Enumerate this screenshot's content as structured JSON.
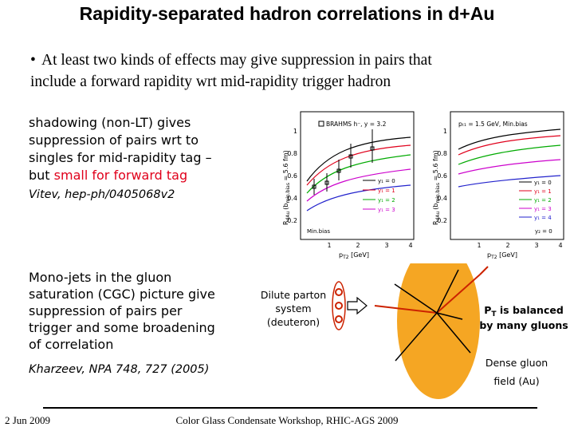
{
  "title": "Rapidity-separated hadron correlations in d+Au",
  "bullet": {
    "symbol": "•",
    "line1": "At least two kinds of effects may give suppression in pairs that",
    "line2": "include a forward rapidity wrt mid-rapidity trigger hadron"
  },
  "shadowing": {
    "line1": "shadowing (non-LT) gives",
    "line2": "suppression of pairs wrt to",
    "line3": "singles for mid-rapidity tag –",
    "line4_prefix": "but ",
    "line4_red": "small for forward tag",
    "citation": "Vitev, hep-ph/0405068v2"
  },
  "cgc": {
    "line1": "Mono-jets in the gluon",
    "line2": "saturation (CGC) picture give",
    "line3": "suppression of pairs per",
    "line4": "trigger and some broadening",
    "line5": "of correlation",
    "citation": "Kharzeev, NPA 748, 727 (2005)"
  },
  "plots": {
    "left": {
      "legend_header": "BRAHMS h⁻, y = 3.2",
      "ylabel_main": "R",
      "ylabel_sub": "dAu",
      "ylabel_paren": "(b",
      "ylabel_paren_sub": "min.bias",
      "ylabel_end": " = 5.6 fm)",
      "xlabel": "p",
      "xlabel_sub": "T2",
      "xlabel_unit": " [GeV]",
      "corner_label": "Min.bias",
      "y_ticks": [
        "0.2",
        "0.4",
        "0.6",
        "0.8",
        "1"
      ],
      "x_ticks": [
        "1",
        "2",
        "3",
        "4"
      ],
      "series_labels": [
        "y₁ = 0",
        "y₁ = 1",
        "y₁ = 2",
        "y₁ = 3"
      ]
    },
    "right": {
      "legend_header": "pₜ₁ = 1.5 GeV, Min.bias",
      "ylabel_main": "R",
      "ylabel_sub": "dAu",
      "ylabel_paren": "(b",
      "ylabel_paren_sub": "min.bias",
      "ylabel_end": " = 5.6 fm)",
      "xlabel": "p",
      "xlabel_sub": "T2",
      "xlabel_unit": " [GeV]",
      "corner_label": "y₂ = 0",
      "y_ticks": [
        "0.2",
        "0.4",
        "0.6",
        "0.8",
        "1"
      ],
      "x_ticks": [
        "1",
        "2",
        "3",
        "4"
      ],
      "series_labels": [
        "y₁ = 0",
        "y₁ = 1",
        "y₁ = 2",
        "y₁ = 3",
        "y₁ = 4"
      ]
    },
    "colors": [
      "#000000",
      "#e0001b",
      "#00aa00",
      "#cc00cc",
      "#2222cc"
    ]
  },
  "diagram": {
    "dilute_line1": "Dilute parton",
    "dilute_line2": "system",
    "dilute_line3": "(deuteron)",
    "pt_balanced_line1": "P",
    "pt_balanced_sub": "T",
    "pt_balanced_line1_rest": " is balanced",
    "pt_balanced_line2": "by many gluons",
    "dense_line1": "Dense gluon",
    "dense_line2": "field (Au)",
    "nucleus_color": "#f5a623",
    "parton_color": "#cc2200"
  },
  "footer": {
    "date": "2 Jun 2009",
    "center": "Color Glass Condensate Workshop, RHIC-AGS 2009"
  }
}
